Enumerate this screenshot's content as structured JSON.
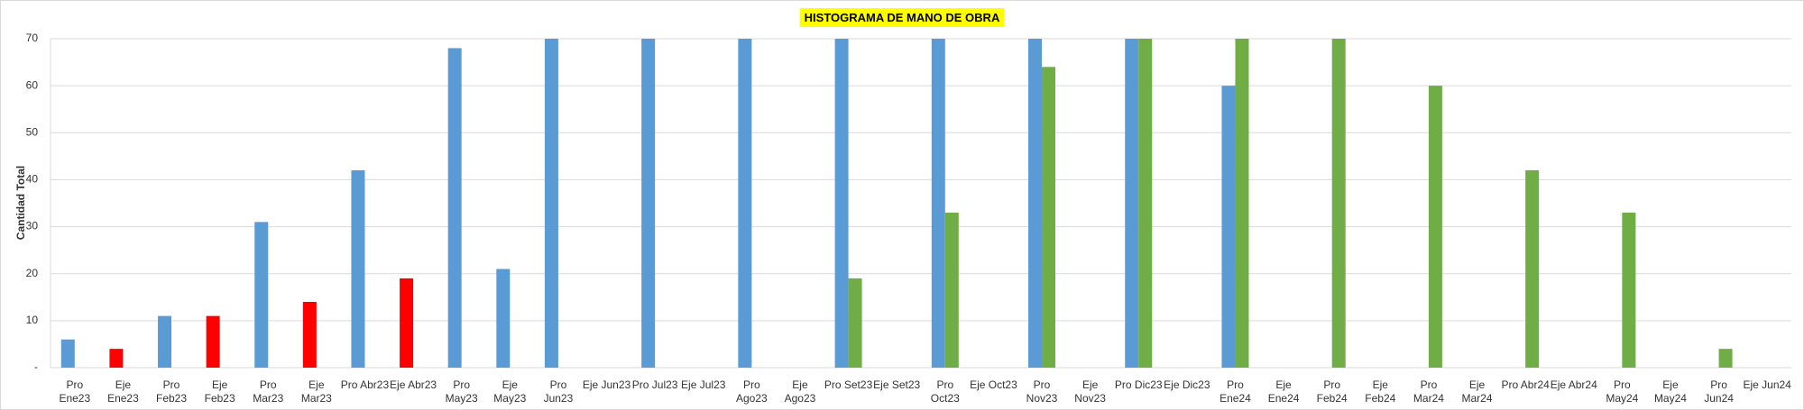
{
  "chart_data": {
    "type": "bar",
    "title": "HISTOGRAMA DE MANO DE OBRA",
    "y_label": "Cantidad Total",
    "categories": [
      "Pro Ene23",
      "Eje Ene23",
      "Pro Feb23",
      "Eje Feb23",
      "Pro Mar23",
      "Eje Mar23",
      "Pro Abr23",
      "Eje Abr23",
      "Pro May23",
      "Eje May23",
      "Pro Jun23",
      "Eje Jun23",
      "Pro Jul23",
      "Eje Jul23",
      "Pro Ago23",
      "Eje Ago23",
      "Pro Set23",
      "Eje Set23",
      "Pro Oct23",
      "Eje Oct23",
      "Pro Nov23",
      "Eje Nov23",
      "Pro Dic23",
      "Eje Dic23",
      "Pro Ene24",
      "Eje Ene24",
      "Pro Feb24",
      "Eje Feb24",
      "Pro Mar24",
      "Eje Mar24",
      "Pro Abr24",
      "Eje Abr24",
      "Pro May24",
      "Eje May24",
      "Pro Jun24",
      "Eje Jun24"
    ],
    "series": [
      {
        "color": "#5b9bd5",
        "colors": [
          "#5b9bd5",
          "#ff0000",
          "#5b9bd5",
          "#ff0000",
          "#5b9bd5",
          "#ff0000",
          "#5b9bd5",
          "#ff0000",
          "#5b9bd5",
          "#5b9bd5",
          "#5b9bd5",
          "#5b9bd5",
          "#5b9bd5",
          "#5b9bd5",
          "#5b9bd5",
          "#5b9bd5",
          "#5b9bd5",
          "#5b9bd5",
          "#5b9bd5",
          "#5b9bd5",
          "#5b9bd5",
          "#5b9bd5",
          "#5b9bd5",
          "#5b9bd5",
          "#5b9bd5",
          "#5b9bd5",
          "#5b9bd5",
          "#5b9bd5",
          "#5b9bd5",
          "#5b9bd5",
          "#5b9bd5",
          "#5b9bd5",
          "#5b9bd5",
          "#5b9bd5",
          "#5b9bd5",
          "#5b9bd5"
        ],
        "values": [
          6,
          4,
          11,
          11,
          31,
          14,
          42,
          19,
          68,
          21,
          70,
          null,
          70,
          null,
          70,
          null,
          70,
          null,
          70,
          null,
          70,
          null,
          70,
          null,
          60,
          null,
          null,
          null,
          null,
          null,
          null,
          null,
          null,
          null,
          null,
          null
        ]
      },
      {
        "color": "#70ad47",
        "values": [
          null,
          null,
          null,
          null,
          null,
          null,
          null,
          null,
          null,
          null,
          null,
          null,
          null,
          null,
          null,
          null,
          19,
          null,
          33,
          null,
          64,
          null,
          70,
          null,
          70,
          null,
          70,
          null,
          60,
          null,
          42,
          null,
          33,
          null,
          4,
          null
        ]
      }
    ],
    "ylim": [
      0,
      70
    ],
    "yticks": [
      {
        "value": 0,
        "label": "-"
      },
      10,
      20,
      30,
      40,
      50,
      60,
      70
    ],
    "grid": true
  }
}
